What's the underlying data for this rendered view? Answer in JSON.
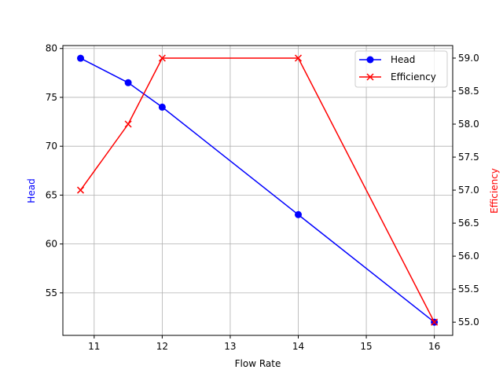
{
  "chart_data": {
    "type": "line",
    "title": "",
    "xlabel": "Flow Rate",
    "ylabel": "Head",
    "ylabel_right": "Efficiency",
    "xlim": [
      10.54,
      16.27
    ],
    "ylim": [
      50.65,
      80.3
    ],
    "ylim_right": [
      54.8,
      59.19
    ],
    "grid": true,
    "legend_position": "upper right",
    "x": [
      10.8,
      11.5,
      12,
      14,
      16
    ],
    "x_ticks": [
      11,
      12,
      13,
      14,
      15,
      16
    ],
    "y_ticks": [
      55,
      60,
      65,
      70,
      75,
      80
    ],
    "y_ticks_right": [
      "55.0",
      "55.5",
      "56.0",
      "56.5",
      "57.0",
      "57.5",
      "58.0",
      "58.5",
      "59.0"
    ],
    "series": [
      {
        "name": "Head",
        "axis": "left",
        "color": "#0000ff",
        "marker": "circle",
        "values": [
          79,
          76.5,
          74,
          63,
          52
        ]
      },
      {
        "name": "Efficiency",
        "axis": "right",
        "color": "#ff0000",
        "marker": "x",
        "values": [
          57,
          58,
          59,
          59,
          55
        ]
      }
    ]
  },
  "colors": {
    "grid": "#b0b0b0",
    "axis": "#000000",
    "head": "#0000ff",
    "efficiency": "#ff0000"
  }
}
